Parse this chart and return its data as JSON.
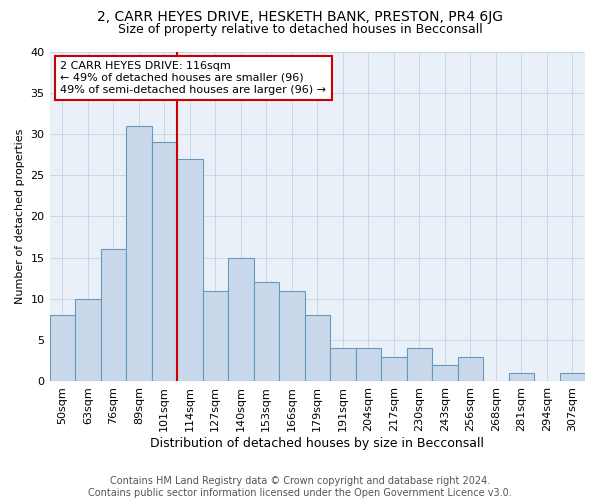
{
  "title": "2, CARR HEYES DRIVE, HESKETH BANK, PRESTON, PR4 6JG",
  "subtitle": "Size of property relative to detached houses in Becconsall",
  "xlabel": "Distribution of detached houses by size in Becconsall",
  "ylabel": "Number of detached properties",
  "bar_labels": [
    "50sqm",
    "63sqm",
    "76sqm",
    "89sqm",
    "101sqm",
    "114sqm",
    "127sqm",
    "140sqm",
    "153sqm",
    "166sqm",
    "179sqm",
    "191sqm",
    "204sqm",
    "217sqm",
    "230sqm",
    "243sqm",
    "256sqm",
    "268sqm",
    "281sqm",
    "294sqm",
    "307sqm"
  ],
  "bar_values": [
    8,
    10,
    16,
    31,
    29,
    27,
    11,
    15,
    12,
    11,
    8,
    4,
    4,
    3,
    4,
    2,
    3,
    0,
    1,
    0,
    1
  ],
  "bar_color": "#c9d9eb",
  "bar_edgecolor": "#6699bb",
  "property_line_color": "#cc0000",
  "annotation_text": "2 CARR HEYES DRIVE: 116sqm\n← 49% of detached houses are smaller (96)\n49% of semi-detached houses are larger (96) →",
  "annotation_box_color": "#ffffff",
  "annotation_box_edgecolor": "#cc0000",
  "ylim": [
    0,
    40
  ],
  "yticks": [
    0,
    5,
    10,
    15,
    20,
    25,
    30,
    35,
    40
  ],
  "grid_color": "#c8d8e8",
  "background_color": "#eaf0f8",
  "footnote": "Contains HM Land Registry data © Crown copyright and database right 2024.\nContains public sector information licensed under the Open Government Licence v3.0.",
  "title_fontsize": 10,
  "subtitle_fontsize": 9,
  "xlabel_fontsize": 9,
  "ylabel_fontsize": 8,
  "tick_fontsize": 8,
  "annotation_fontsize": 8,
  "footnote_fontsize": 7
}
